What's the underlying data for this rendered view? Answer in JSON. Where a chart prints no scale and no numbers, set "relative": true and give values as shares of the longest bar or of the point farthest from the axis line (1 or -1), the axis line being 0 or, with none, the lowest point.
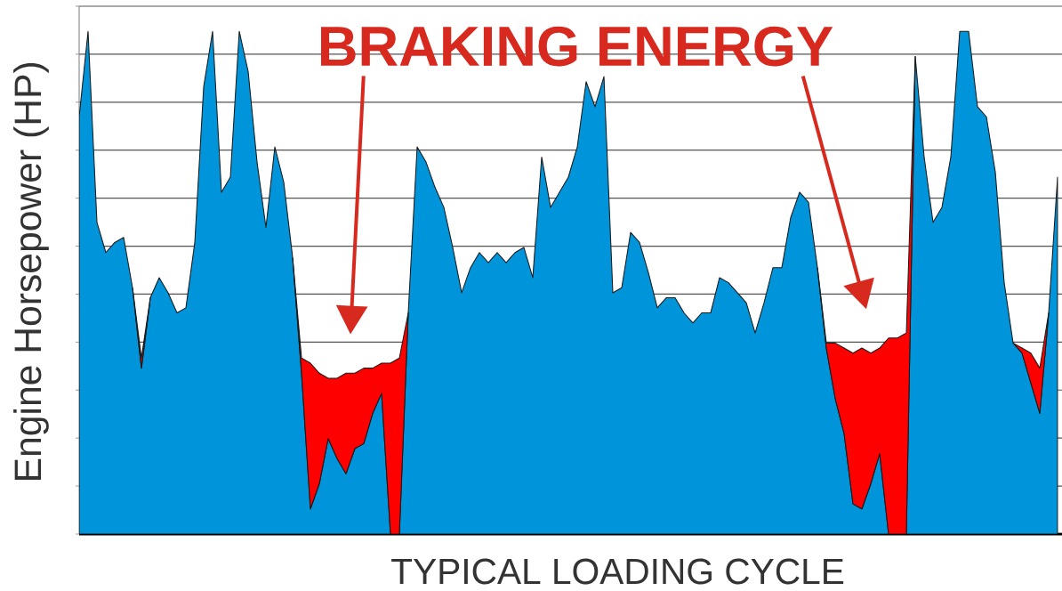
{
  "chart_data": {
    "type": "area",
    "stacked": true,
    "relative": true,
    "grid": "y",
    "xlabel": "TYPICAL LOADING CYCLE",
    "ylabel": "Engine Horsepower (HP)",
    "annotations": [
      "BRAKING ENERGY"
    ],
    "categories": [
      null,
      null,
      null,
      null,
      null,
      null,
      null,
      null,
      null,
      null,
      null,
      null,
      null,
      null,
      null,
      null,
      null,
      null,
      null,
      null,
      null,
      null,
      null,
      null,
      null,
      null,
      null,
      null,
      null,
      null,
      null,
      null,
      null,
      null,
      null,
      null,
      null,
      null,
      null,
      null,
      null,
      null,
      null,
      null,
      null,
      null,
      null,
      null,
      null,
      null,
      null,
      null,
      null,
      null,
      null,
      null,
      null,
      null,
      null,
      null,
      null,
      null,
      null,
      null,
      null,
      null,
      null,
      null,
      null,
      null,
      null,
      null,
      null,
      null,
      null,
      null,
      null,
      null,
      null,
      null,
      null,
      null,
      null,
      null,
      null,
      null,
      null,
      null,
      null,
      null,
      null,
      null,
      null,
      null,
      null,
      null,
      null,
      null,
      null,
      null,
      null,
      null,
      null,
      null,
      null,
      null,
      null,
      null,
      null,
      null,
      null
    ],
    "series": [
      {
        "color": "#0095da",
        "values": [
          0.83,
          1.0,
          0.62,
          0.56,
          0.58,
          0.59,
          0.49,
          0.33,
          0.47,
          0.51,
          0.48,
          0.44,
          0.45,
          0.58,
          0.89,
          1.0,
          0.68,
          0.71,
          1.0,
          0.92,
          0.74,
          0.61,
          0.77,
          0.7,
          0.55,
          0.32,
          0.05,
          0.1,
          0.19,
          0.15,
          0.12,
          0.17,
          0.18,
          0.24,
          0.28,
          0,
          0,
          0.44,
          0.77,
          0.74,
          0.69,
          0.65,
          0.57,
          0.48,
          0.53,
          0.56,
          0.54,
          0.56,
          0.54,
          0.56,
          0.57,
          0.51,
          0.75,
          0.65,
          0.68,
          0.71,
          0.77,
          0.9,
          0.85,
          0.91,
          0.48,
          0.49,
          0.6,
          0.58,
          0.52,
          0.45,
          0.47,
          0.47,
          0.44,
          0.42,
          0.44,
          0.44,
          0.51,
          0.5,
          0.48,
          0.46,
          0.4,
          0.46,
          0.53,
          0.53,
          0.63,
          0.68,
          0.66,
          0.53,
          0.37,
          0.27,
          0.2,
          0.06,
          0.05,
          0.1,
          0.16,
          0,
          0,
          0,
          0.95,
          0.75,
          0.62,
          0.65,
          0.75,
          1.0,
          1.0,
          0.85,
          0.83,
          0.72,
          0.5,
          0.38,
          0.36,
          0.3,
          0.24,
          0.44,
          0.71
        ]
      },
      {
        "color": "#ff0000",
        "values": [
          null,
          null,
          null,
          null,
          null,
          null,
          0,
          0.02,
          0,
          null,
          null,
          null,
          null,
          null,
          null,
          null,
          null,
          null,
          null,
          null,
          null,
          null,
          null,
          null,
          0,
          0.03,
          0.29,
          0.22,
          0.12,
          0.16,
          0.2,
          0.15,
          0.15,
          0.09,
          0.06,
          0.34,
          0.35,
          0,
          null,
          null,
          null,
          null,
          null,
          null,
          null,
          null,
          null,
          null,
          null,
          null,
          null,
          null,
          null,
          null,
          null,
          null,
          null,
          null,
          null,
          null,
          null,
          null,
          null,
          null,
          null,
          null,
          null,
          null,
          null,
          null,
          null,
          null,
          null,
          null,
          null,
          null,
          null,
          null,
          null,
          null,
          null,
          null,
          null,
          0,
          0.01,
          0.11,
          0.17,
          0.3,
          0.32,
          0.26,
          0.21,
          0.39,
          0.39,
          0.4,
          0,
          null,
          null,
          null,
          null,
          null,
          null,
          null,
          null,
          null,
          null,
          0,
          0.01,
          0.06,
          0.09,
          0,
          null
        ]
      }
    ]
  }
}
